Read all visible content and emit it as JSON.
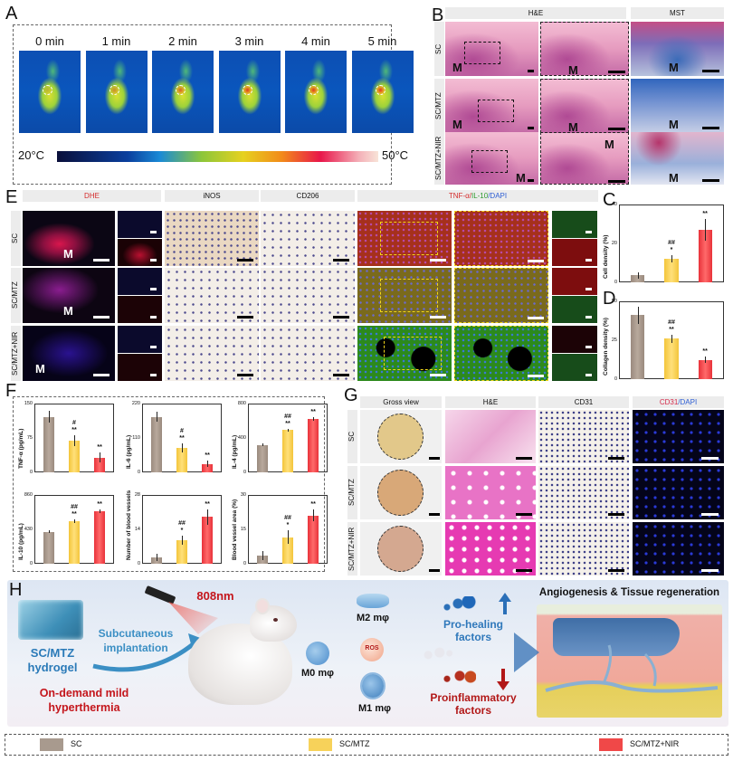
{
  "panels": {
    "A": {
      "letter": "A",
      "time_labels": [
        "0 min",
        "1 min",
        "2 min",
        "3 min",
        "4 min",
        "5 min"
      ],
      "colorbar": {
        "min_label": "20°C",
        "max_label": "50°C"
      }
    },
    "B": {
      "letter": "B",
      "column_headers": [
        "H&E",
        "MST"
      ],
      "row_headers": [
        "SC",
        "SC/MTZ",
        "SC/MTZ+NIR"
      ],
      "marker": "M"
    },
    "E": {
      "letter": "E",
      "column_headers": [
        "DHE",
        "iNOS",
        "CD206",
        "TNF-α",
        "/",
        "IL-10",
        "/DAPI"
      ],
      "row_headers": [
        "SC",
        "SC/MTZ",
        "SC/MTZ+NIR"
      ],
      "marker": "M",
      "colors": {
        "dhe": "#d42a2a",
        "tnf": "#d42a2a",
        "il10": "#2f9a2f",
        "dapi": "#2f5fd4"
      }
    },
    "G": {
      "letter": "G",
      "column_headers": [
        "Gross view",
        "H&E",
        "CD31",
        "CD31",
        "/DAPI"
      ],
      "row_headers": [
        "SC",
        "SC/MTZ",
        "SC/MTZ+NIR"
      ]
    },
    "C": {
      "letter": "C"
    },
    "D": {
      "letter": "D"
    },
    "F": {
      "letter": "F"
    },
    "H": {
      "letter": "H",
      "laser": "808nm",
      "hydrogel": "SC/MTZ\nhydrogel",
      "hydrogel_line1": "SC/MTZ",
      "hydrogel_line2": "hydrogel",
      "implant_line1": "Subcutaneous",
      "implant_line2": "implantation",
      "hyper_line1": "On-demand mild",
      "hyper_line2": "hyperthermia",
      "m0": "M0 mφ",
      "m1": "M1 mφ",
      "m2": "M2 mφ",
      "ros": "ROS",
      "pro_heal_line1": "Pro-healing",
      "pro_heal_line2": "factors",
      "proinf_line1": "Proinflammatory",
      "proinf_line2": "factors",
      "title_right": "Angiogenesis & Tissue regeneration"
    }
  },
  "legend": {
    "items": [
      {
        "label": "SC",
        "color": "#a89a8e"
      },
      {
        "label": "SC/MTZ",
        "color": "#f7d25a"
      },
      {
        "label": "SC/MTZ+NIR",
        "color": "#f04848"
      }
    ]
  },
  "chart_data": [
    {
      "id": "C",
      "type": "bar",
      "title": "",
      "xlabel": "",
      "ylabel": "Cell density (%)",
      "categories": [
        "SC",
        "SC/MTZ",
        "SC/MTZ+NIR"
      ],
      "values": [
        3.5,
        12,
        27
      ],
      "errors": [
        1.5,
        2,
        5.5
      ],
      "significance": [
        "",
        "##\n*",
        "**"
      ],
      "ylim": [
        0,
        40
      ],
      "yticks": [
        "0",
        "20",
        "40"
      ],
      "grid": false
    },
    {
      "id": "D",
      "type": "bar",
      "title": "",
      "xlabel": "",
      "ylabel": "Collagen density (%)",
      "categories": [
        "SC",
        "SC/MTZ",
        "SC/MTZ+NIR"
      ],
      "values": [
        41,
        26,
        12.5
      ],
      "errors": [
        5.5,
        2.5,
        2
      ],
      "significance": [
        "",
        "##\n**",
        "**"
      ],
      "ylim": [
        0,
        50
      ],
      "yticks": [
        "0",
        "25",
        "50"
      ],
      "grid": false
    },
    {
      "id": "F1",
      "type": "bar",
      "title": "",
      "xlabel": "",
      "ylabel": "TNF-α (pg/mL)",
      "categories": [
        "SC",
        "SC/MTZ",
        "SC/MTZ+NIR"
      ],
      "values": [
        121,
        69,
        32
      ],
      "errors": [
        13,
        11,
        11
      ],
      "significance": [
        "",
        "#\n**",
        "**"
      ],
      "ylim": [
        0,
        150
      ],
      "yticks": [
        "0",
        "75",
        "150"
      ],
      "grid": false
    },
    {
      "id": "F2",
      "type": "bar",
      "title": "",
      "xlabel": "",
      "ylabel": "IL-6 (pg/mL)",
      "categories": [
        "SC",
        "SC/MTZ",
        "SC/MTZ+NIR"
      ],
      "values": [
        178,
        78,
        27
      ],
      "errors": [
        16,
        14,
        10
      ],
      "significance": [
        "",
        "#\n**",
        "**"
      ],
      "ylim": [
        0,
        220
      ],
      "yticks": [
        "0",
        "110",
        "220"
      ],
      "grid": false
    },
    {
      "id": "F3",
      "type": "bar",
      "title": "",
      "xlabel": "",
      "ylabel": "IL-4 (pg/mL)",
      "categories": [
        "SC",
        "SC/MTZ",
        "SC/MTZ+NIR"
      ],
      "values": [
        320,
        490,
        620
      ],
      "errors": [
        20,
        20,
        22
      ],
      "significance": [
        "",
        "##\n**",
        "**"
      ],
      "ylim": [
        0,
        800
      ],
      "yticks": [
        "0",
        "400",
        "800"
      ],
      "grid": false
    },
    {
      "id": "F4",
      "type": "bar",
      "title": "",
      "xlabel": "",
      "ylabel": "IL-10 (pg/mL)",
      "categories": [
        "SC",
        "SC/MTZ",
        "SC/MTZ+NIR"
      ],
      "values": [
        400,
        535,
        655
      ],
      "errors": [
        20,
        25,
        25
      ],
      "significance": [
        "",
        "##\n**",
        "**"
      ],
      "ylim": [
        0,
        860
      ],
      "yticks": [
        "0",
        "430",
        "860"
      ],
      "grid": false
    },
    {
      "id": "F5",
      "type": "bar",
      "title": "",
      "xlabel": "",
      "ylabel": "Number of blood vessels",
      "categories": [
        "SC",
        "SC/MTZ",
        "SC/MTZ+NIR"
      ],
      "values": [
        2.5,
        9.5,
        19
      ],
      "errors": [
        1.5,
        1.8,
        3
      ],
      "significance": [
        "",
        "##\n*",
        "**"
      ],
      "ylim": [
        0,
        28
      ],
      "yticks": [
        "0",
        "14",
        "28"
      ],
      "grid": false
    },
    {
      "id": "F6",
      "type": "bar",
      "title": "",
      "xlabel": "",
      "ylabel": "Blood vessel area (%)",
      "categories": [
        "SC",
        "SC/MTZ",
        "SC/MTZ+NIR"
      ],
      "values": [
        3.5,
        11.5,
        21
      ],
      "errors": [
        2,
        3,
        2.5
      ],
      "significance": [
        "",
        "##\n*",
        "**"
      ],
      "ylim": [
        0,
        30
      ],
      "yticks": [
        "0",
        "15",
        "30"
      ],
      "grid": false
    }
  ]
}
